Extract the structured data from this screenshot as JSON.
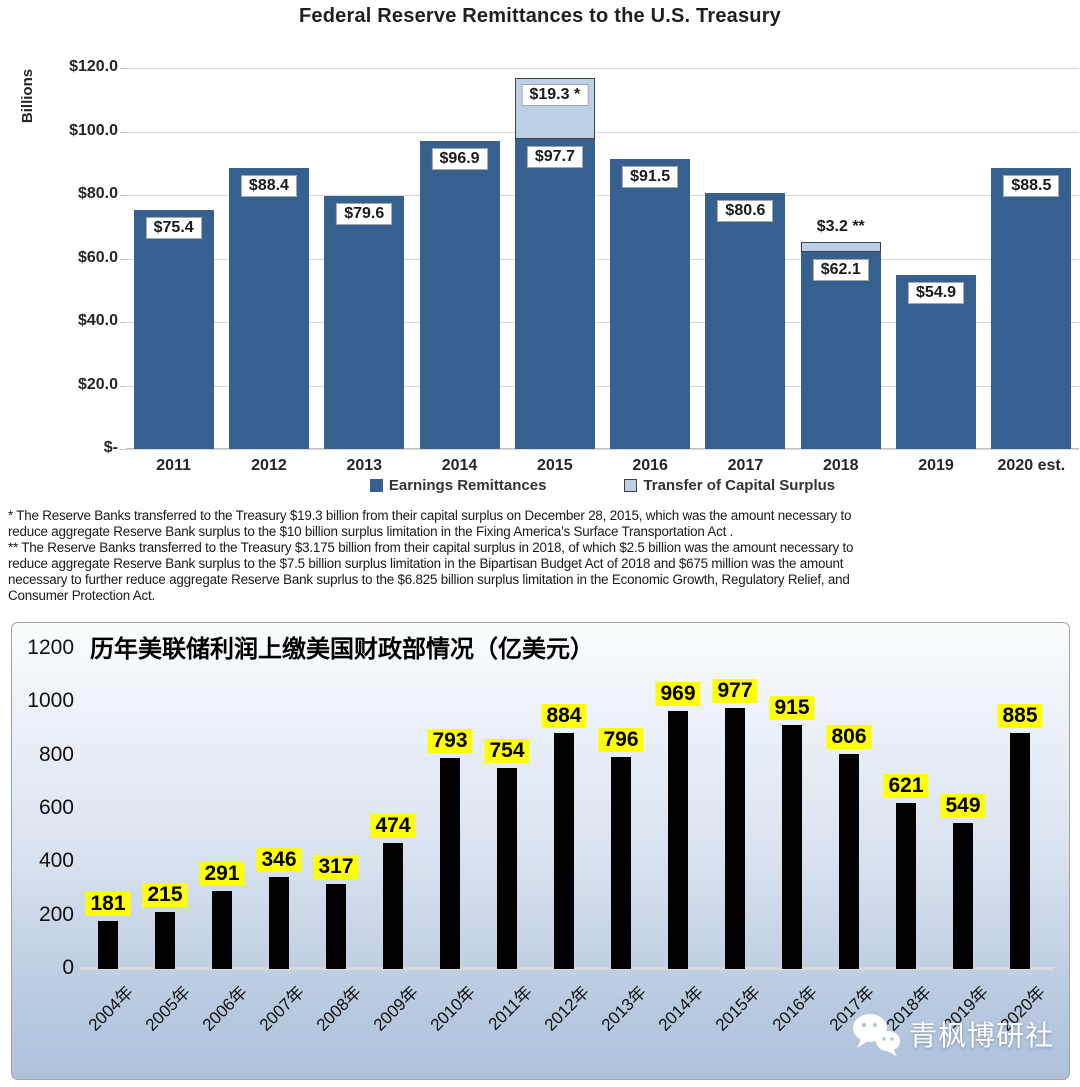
{
  "top_chart": {
    "title": "Federal Reserve Remittances to the U.S. Treasury",
    "y_axis_label": "Billions",
    "y_ticks": [
      "$120.0",
      "$100.0",
      "$80.0",
      "$60.0",
      "$40.0",
      "$20.0",
      "$-"
    ],
    "bar_labels": [
      "$75.4",
      "$88.4",
      "$79.6",
      "$96.9",
      "$97.7",
      "$91.5",
      "$80.6",
      "$62.1",
      "$54.9",
      "$88.5"
    ],
    "surplus_labels": [
      "",
      "",
      "",
      "",
      "$19.3 *",
      "",
      "",
      "$3.2 **",
      "",
      ""
    ],
    "legend": [
      {
        "label": "Earnings Remittances",
        "color": "#35608F"
      },
      {
        "label": "Transfer of Capital Surplus",
        "color": "#BDCFE5"
      }
    ],
    "colors": {
      "bar": "#35608F",
      "surplus": "#BDCFE5",
      "surplus_border": "#404040",
      "grid": "#d9d9d9"
    },
    "footnote_lines": [
      "* The Reserve Banks transferred to the Treasury $19.3 billion from their capital surplus on December 28, 2015, which was the amount necessary to",
      "reduce aggregate Reserve Bank surplus to the $10 billion surplus limitation in the Fixing America’s Surface Transportation Act .",
      "** The Reserve Banks transferred to the Treasury $3.175 billion from their capital surplus in 2018, of which $2.5 billion was the amount necessary to",
      "reduce aggregate Reserve Bank surplus to the $7.5 billion surplus limitation in the Bipartisan Budget Act of 2018 and $675 million was the amount",
      "necessary to further reduce aggregate Reserve Bank suprlus to the $6.825 billion surplus limitation in the Economic Growth, Regulatory Relief, and",
      "Consumer Protection Act."
    ]
  },
  "bottom_chart": {
    "title": "历年美联储利润上缴美国财政部情况（亿美元）",
    "y_ticks": [
      "1200",
      "1000",
      "800",
      "600",
      "400",
      "200",
      "0"
    ],
    "bar_color": "#000000",
    "label_background": "#FFFF00",
    "watermark": {
      "icon": "wechat-icon",
      "text": "青枫博研社"
    }
  },
  "chart_data": [
    {
      "type": "bar",
      "stacked": true,
      "title": "Federal Reserve Remittances to the U.S. Treasury",
      "categories": [
        "2011",
        "2012",
        "2013",
        "2014",
        "2015",
        "2016",
        "2017",
        "2018",
        "2019",
        "2020 est."
      ],
      "series": [
        {
          "name": "Earnings Remittances",
          "values": [
            75.4,
            88.4,
            79.6,
            96.9,
            97.7,
            91.5,
            80.6,
            62.1,
            54.9,
            88.5
          ]
        },
        {
          "name": "Transfer of Capital Surplus",
          "values": [
            0,
            0,
            0,
            0,
            19.3,
            0,
            0,
            3.2,
            0,
            0
          ]
        }
      ],
      "xlabel": "",
      "ylabel": "Billions",
      "ylim": [
        0,
        120
      ],
      "grid": true,
      "legend_position": "bottom"
    },
    {
      "type": "bar",
      "title": "历年美联储利润上缴美国财政部情况（亿美元）",
      "categories": [
        "2004年",
        "2005年",
        "2006年",
        "2007年",
        "2008年",
        "2009年",
        "2010年",
        "2011年",
        "2012年",
        "2013年",
        "2014年",
        "2015年",
        "2016年",
        "2017年",
        "2018年",
        "2019年",
        "2020年"
      ],
      "values": [
        181,
        215,
        291,
        346,
        317,
        474,
        793,
        754,
        884,
        796,
        969,
        977,
        915,
        806,
        621,
        549,
        885
      ],
      "xlabel": "",
      "ylabel": "",
      "ylim": [
        0,
        1200
      ],
      "grid": false,
      "legend_position": "none"
    }
  ]
}
